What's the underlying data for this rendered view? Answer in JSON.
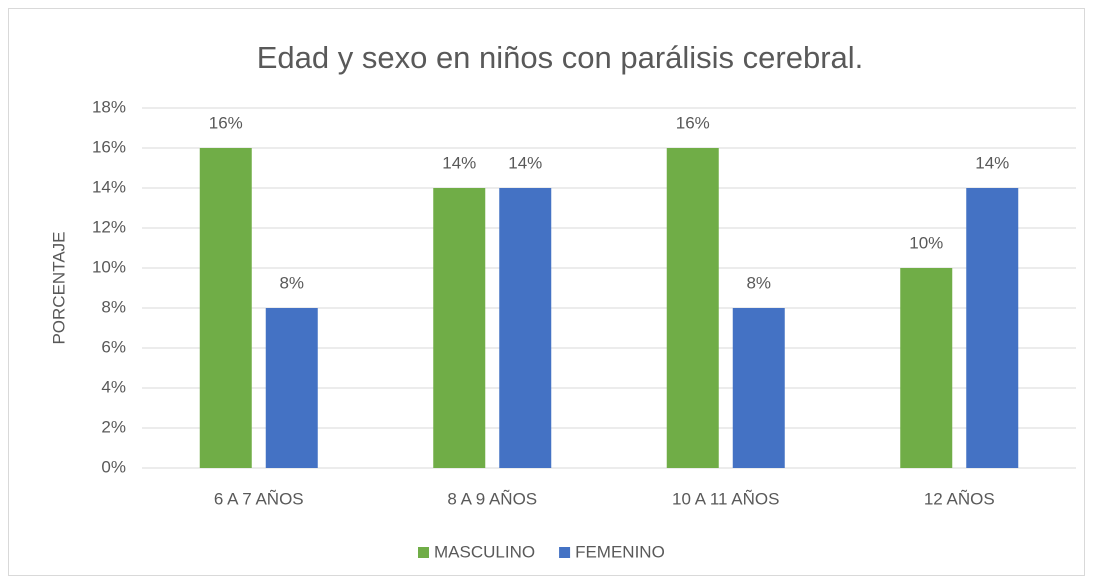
{
  "chart_data": {
    "type": "bar",
    "title": "Edad y sexo en niños con parálisis cerebral.",
    "y_label": "PORCENTAJE",
    "categories": [
      "6 A 7 AÑOS",
      "8 A 9 AÑOS",
      "10 A 11 AÑOS",
      "12 AÑOS"
    ],
    "series": [
      {
        "name": "MASCULINO",
        "color": "#70ad47",
        "values": [
          16,
          14,
          16,
          10
        ],
        "value_labels": [
          "16%",
          "14%",
          "16%",
          "10%"
        ]
      },
      {
        "name": "FEMENINO",
        "color": "#4472c4",
        "values": [
          8,
          14,
          8,
          14
        ],
        "value_labels": [
          "8%",
          "14%",
          "8%",
          "14%"
        ]
      }
    ],
    "ylim": [
      0,
      18
    ],
    "yticks": [
      {
        "value": 0,
        "label": "0%"
      },
      {
        "value": 2,
        "label": "2%"
      },
      {
        "value": 4,
        "label": "4%"
      },
      {
        "value": 6,
        "label": "6%"
      },
      {
        "value": 8,
        "label": "8%"
      },
      {
        "value": 10,
        "label": "10%"
      },
      {
        "value": 12,
        "label": "12%"
      },
      {
        "value": 14,
        "label": "14%"
      },
      {
        "value": 16,
        "label": "16%"
      },
      {
        "value": 18,
        "label": "18%"
      }
    ],
    "grid": true,
    "legend": "bottom"
  }
}
